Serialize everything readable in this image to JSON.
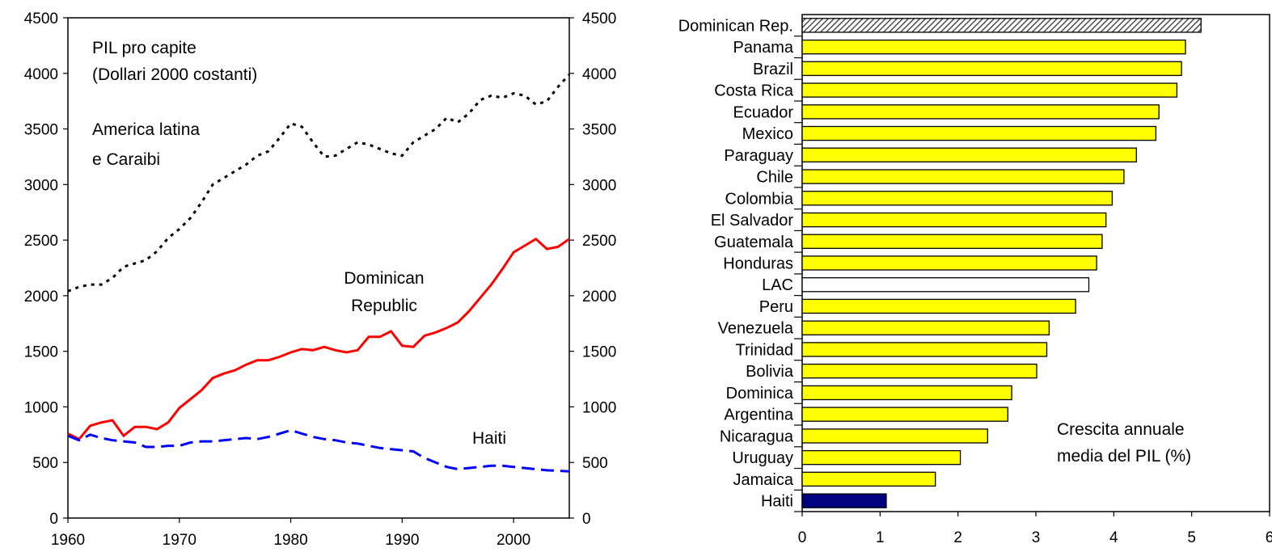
{
  "chart_data": [
    {
      "type": "line",
      "x": [
        1960,
        1961,
        1962,
        1963,
        1964,
        1965,
        1966,
        1967,
        1968,
        1969,
        1970,
        1971,
        1972,
        1973,
        1974,
        1975,
        1976,
        1977,
        1978,
        1979,
        1980,
        1981,
        1982,
        1983,
        1984,
        1985,
        1986,
        1987,
        1988,
        1989,
        1990,
        1991,
        1992,
        1993,
        1994,
        1995,
        1996,
        1997,
        1998,
        1999,
        2000,
        2001,
        2002,
        2003,
        2004,
        2005
      ],
      "series": [
        {
          "name": "America latina e Caraibi",
          "color": "#000000",
          "style": "dotted",
          "values": [
            2040,
            2080,
            2100,
            2100,
            2160,
            2260,
            2290,
            2320,
            2400,
            2520,
            2600,
            2700,
            2840,
            3000,
            3060,
            3120,
            3180,
            3260,
            3300,
            3420,
            3550,
            3520,
            3380,
            3250,
            3260,
            3320,
            3380,
            3360,
            3320,
            3280,
            3260,
            3380,
            3440,
            3500,
            3600,
            3560,
            3640,
            3760,
            3800,
            3780,
            3820,
            3800,
            3720,
            3750,
            3880,
            3990
          ]
        },
        {
          "name": "Dominican Republic",
          "color": "#ff0000",
          "style": "solid",
          "values": [
            760,
            710,
            830,
            860,
            880,
            740,
            820,
            820,
            800,
            860,
            990,
            1070,
            1150,
            1260,
            1300,
            1330,
            1380,
            1420,
            1420,
            1450,
            1490,
            1520,
            1510,
            1540,
            1510,
            1490,
            1510,
            1630,
            1630,
            1680,
            1550,
            1540,
            1640,
            1670,
            1710,
            1760,
            1860,
            1980,
            2100,
            2240,
            2390,
            2450,
            2510,
            2420,
            2440,
            2510
          ]
        },
        {
          "name": "Haiti",
          "color": "#0000ff",
          "style": "dashed",
          "values": [
            740,
            700,
            750,
            720,
            700,
            690,
            680,
            640,
            640,
            650,
            650,
            680,
            690,
            690,
            700,
            710,
            720,
            710,
            730,
            760,
            790,
            760,
            730,
            710,
            700,
            680,
            670,
            650,
            630,
            620,
            610,
            600,
            540,
            500,
            460,
            440,
            450,
            460,
            470,
            470,
            460,
            450,
            440,
            430,
            425,
            420
          ]
        }
      ],
      "annotations": {
        "title_line1": "PIL pro capite",
        "title_line2": "(Dollari 2000 costanti)",
        "lac_line1": "America latina",
        "lac_line2": "e Caraibi",
        "dr_line1": "Dominican",
        "dr_line2": "Republic",
        "haiti": "Haiti"
      },
      "xlim": [
        1960,
        2005
      ],
      "xticks": [
        "1960",
        "1970",
        "1980",
        "1990",
        "2000"
      ],
      "ylim": [
        0,
        4500
      ],
      "yticks": [
        "0",
        "500",
        "1000",
        "1500",
        "2000",
        "2500",
        "3000",
        "3500",
        "4000",
        "4500"
      ],
      "xlabel": "",
      "ylabel": "",
      "grid": false
    },
    {
      "type": "bar",
      "orientation": "horizontal",
      "categories": [
        "Dominican Rep.",
        "Panama",
        "Brazil",
        "Costa Rica",
        "Ecuador",
        "Mexico",
        "Paraguay",
        "Chile",
        "Colombia",
        "El Salvador",
        "Guatemala",
        "Honduras",
        "LAC",
        "Peru",
        "Venezuela",
        "Trinidad",
        "Bolivia",
        "Dominica",
        "Argentina",
        "Nicaragua",
        "Uruguay",
        "Jamaica",
        "Haiti"
      ],
      "values": [
        5.12,
        4.92,
        4.87,
        4.81,
        4.58,
        4.54,
        4.29,
        4.13,
        3.98,
        3.9,
        3.85,
        3.78,
        3.68,
        3.51,
        3.17,
        3.14,
        3.01,
        2.69,
        2.64,
        2.38,
        2.03,
        1.71,
        1.08
      ],
      "bar_styles": [
        "hatched",
        "yellow",
        "yellow",
        "yellow",
        "yellow",
        "yellow",
        "yellow",
        "yellow",
        "yellow",
        "yellow",
        "yellow",
        "yellow",
        "white",
        "yellow",
        "yellow",
        "yellow",
        "yellow",
        "yellow",
        "yellow",
        "yellow",
        "yellow",
        "yellow",
        "navy"
      ],
      "colors": {
        "yellow": "#ffff00",
        "navy": "#000080",
        "white": "#ffffff",
        "hatch": "#333333"
      },
      "annotation_line1": "Crescita annuale",
      "annotation_line2": "media del PIL (%)",
      "xlim": [
        0,
        6
      ],
      "xticks": [
        "0",
        "1",
        "2",
        "3",
        "4",
        "5",
        "6"
      ],
      "xlabel": "",
      "ylabel": "",
      "grid": false
    }
  ]
}
